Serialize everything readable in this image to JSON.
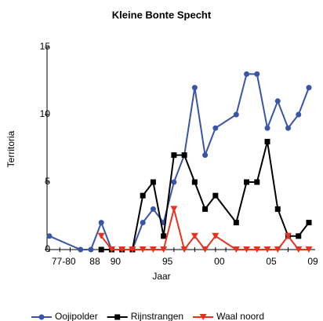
{
  "chart_data": {
    "type": "line",
    "title": "Kleine Bonte Specht",
    "x_label": "Jaar",
    "y_label": "Territoria",
    "categories": [
      null,
      "77-80",
      null,
      null,
      "88",
      null,
      "90",
      null,
      null,
      null,
      null,
      "95",
      null,
      null,
      null,
      null,
      "00",
      null,
      null,
      null,
      null,
      "05",
      null,
      null,
      null,
      "09"
    ],
    "series": [
      {
        "name": "Oojipolder",
        "color": "#3a55a8",
        "marker": "circle",
        "values": [
          1,
          null,
          null,
          0,
          0,
          2,
          0,
          0,
          0,
          2,
          3,
          2,
          5,
          7,
          12,
          7,
          9,
          null,
          10,
          13,
          13,
          9,
          11,
          9,
          10,
          12
        ]
      },
      {
        "name": "Rijnstrangen",
        "color": "#000000",
        "marker": "square",
        "values": [
          null,
          null,
          null,
          null,
          null,
          0,
          0,
          0,
          0,
          4,
          5,
          1,
          7,
          7,
          5,
          3,
          4,
          null,
          2,
          5,
          5,
          8,
          3,
          1,
          1,
          2
        ]
      },
      {
        "name": "Waal noord",
        "color": "#e8321e",
        "marker": "triangle-down",
        "values": [
          null,
          null,
          null,
          null,
          null,
          1,
          0,
          0,
          0,
          0,
          0,
          0,
          3,
          0,
          1,
          0,
          1,
          null,
          0,
          0,
          0,
          0,
          0,
          1,
          0,
          0
        ]
      }
    ],
    "ylim": [
      0,
      15
    ],
    "yticks": [
      0,
      5,
      10,
      15
    ],
    "grid": false,
    "legend": "bottom"
  }
}
